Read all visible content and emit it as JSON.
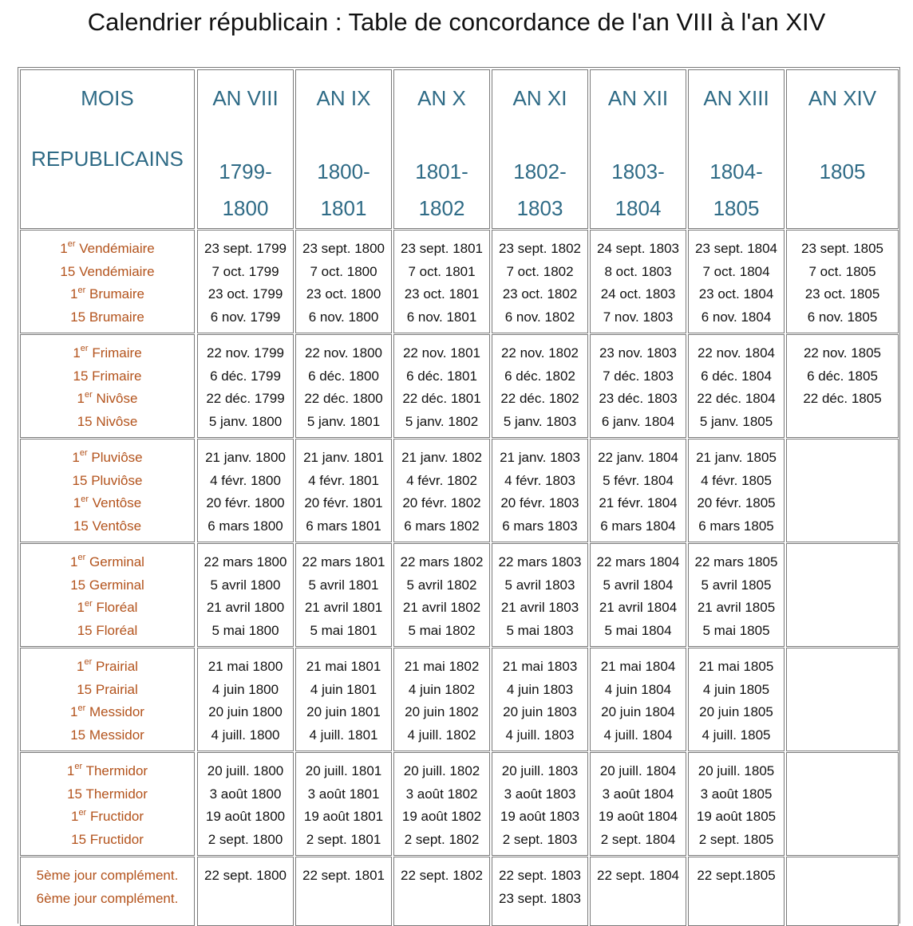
{
  "title": "Calendrier républicain : Table de concordance de l'an VIII à l'an XIV",
  "header": {
    "mois_line1": "MOIS",
    "mois_line2": "REPUBLICAINS",
    "years": [
      {
        "an": "AN VIII",
        "y1": "1799-",
        "y2": "1800"
      },
      {
        "an": "AN IX",
        "y1": "1800-",
        "y2": "1801"
      },
      {
        "an": "AN X",
        "y1": "1801-",
        "y2": "1802"
      },
      {
        "an": "AN XI",
        "y1": "1802-",
        "y2": "1803"
      },
      {
        "an": "AN XII",
        "y1": "1803-",
        "y2": "1804"
      },
      {
        "an": "AN XIII",
        "y1": "1804-",
        "y2": "1805"
      },
      {
        "an": "AN XIV",
        "y1": "1805",
        "y2": ""
      }
    ]
  },
  "groups": [
    {
      "mois": [
        {
          "pre": "1",
          "sup": "er",
          "name": "Vendémiaire"
        },
        {
          "pre": "15",
          "sup": "",
          "name": "Vendémiaire"
        },
        {
          "pre": "1",
          "sup": "er",
          "name": "Brumaire"
        },
        {
          "pre": "15",
          "sup": "",
          "name": "Brumaire"
        }
      ],
      "dates": [
        [
          "23 sept. 1799",
          "7 oct. 1799",
          "23 oct. 1799",
          "6 nov. 1799"
        ],
        [
          "23 sept. 1800",
          "7 oct. 1800",
          "23 oct. 1800",
          "6 nov. 1800"
        ],
        [
          "23 sept. 1801",
          "7 oct. 1801",
          "23 oct. 1801",
          "6 nov. 1801"
        ],
        [
          "23 sept. 1802",
          "7 oct. 1802",
          "23 oct. 1802",
          "6 nov. 1802"
        ],
        [
          "24 sept. 1803",
          "8 oct. 1803",
          "24 oct. 1803",
          "7 nov. 1803"
        ],
        [
          "23 sept. 1804",
          "7 oct. 1804",
          "23 oct. 1804",
          "6 nov. 1804"
        ],
        [
          "23 sept. 1805",
          "7 oct. 1805",
          "23 oct. 1805",
          "6 nov. 1805"
        ]
      ]
    },
    {
      "mois": [
        {
          "pre": "1",
          "sup": "er",
          "name": "Frimaire"
        },
        {
          "pre": "15",
          "sup": "",
          "name": "Frimaire"
        },
        {
          "pre": "1",
          "sup": "er",
          "name": "Nivôse"
        },
        {
          "pre": "15",
          "sup": "",
          "name": "Nivôse"
        }
      ],
      "dates": [
        [
          "22 nov. 1799",
          "6 déc. 1799",
          "22 déc. 1799",
          "5 janv. 1800"
        ],
        [
          "22 nov. 1800",
          "6 déc. 1800",
          "22 déc. 1800",
          "5 janv. 1801"
        ],
        [
          "22 nov. 1801",
          "6 déc. 1801",
          "22 déc. 1801",
          "5 janv. 1802"
        ],
        [
          "22 nov. 1802",
          "6 déc. 1802",
          "22 déc. 1802",
          "5 janv. 1803"
        ],
        [
          "23 nov. 1803",
          "7 déc. 1803",
          "23 déc. 1803",
          "6 janv. 1804"
        ],
        [
          "22 nov. 1804",
          "6 déc. 1804",
          "22 déc. 1804",
          "5 janv. 1805"
        ],
        [
          "22 nov. 1805",
          "6 déc. 1805",
          "22 déc. 1805"
        ]
      ]
    },
    {
      "mois": [
        {
          "pre": "1",
          "sup": "er",
          "name": "Pluviôse"
        },
        {
          "pre": "15",
          "sup": "",
          "name": "Pluviôse"
        },
        {
          "pre": "1",
          "sup": "er",
          "name": "Ventôse"
        },
        {
          "pre": "15",
          "sup": "",
          "name": "Ventôse"
        }
      ],
      "dates": [
        [
          "21 janv. 1800",
          "4 févr. 1800",
          "20 févr. 1800",
          "6 mars 1800"
        ],
        [
          "21 janv. 1801",
          "4 févr. 1801",
          "20 févr. 1801",
          "6 mars 1801"
        ],
        [
          "21 janv. 1802",
          "4 févr. 1802",
          "20 févr. 1802",
          "6 mars 1802"
        ],
        [
          "21 janv. 1803",
          "4 févr. 1803",
          "20 févr. 1803",
          "6 mars 1803"
        ],
        [
          "22 janv. 1804",
          "5 févr. 1804",
          "21 févr. 1804",
          "6 mars 1804"
        ],
        [
          "21 janv. 1805",
          "4 févr. 1805",
          "20 févr. 1805",
          "6 mars 1805"
        ],
        []
      ]
    },
    {
      "mois": [
        {
          "pre": "1",
          "sup": "er",
          "name": "Germinal"
        },
        {
          "pre": "15",
          "sup": "",
          "name": "Germinal"
        },
        {
          "pre": "1",
          "sup": "er",
          "name": "Floréal"
        },
        {
          "pre": "15",
          "sup": "",
          "name": "Floréal"
        }
      ],
      "dates": [
        [
          "22 mars 1800",
          "5 avril 1800",
          "21 avril 1800",
          "5 mai 1800"
        ],
        [
          "22 mars 1801",
          "5 avril 1801",
          "21 avril 1801",
          "5 mai 1801"
        ],
        [
          "22 mars 1802",
          "5 avril 1802",
          "21 avril 1802",
          "5 mai 1802"
        ],
        [
          "22 mars 1803",
          "5 avril 1803",
          "21 avril 1803",
          "5 mai 1803"
        ],
        [
          "22 mars 1804",
          "5 avril 1804",
          "21 avril 1804",
          "5 mai 1804"
        ],
        [
          "22 mars 1805",
          "5 avril 1805",
          "21 avril 1805",
          "5 mai 1805"
        ],
        []
      ]
    },
    {
      "mois": [
        {
          "pre": "1",
          "sup": "er",
          "name": "Prairial"
        },
        {
          "pre": "15",
          "sup": "",
          "name": "Prairial"
        },
        {
          "pre": "1",
          "sup": "er",
          "name": "Messidor"
        },
        {
          "pre": "15",
          "sup": "",
          "name": "Messidor"
        }
      ],
      "dates": [
        [
          "21 mai 1800",
          "4 juin 1800",
          "20 juin 1800",
          "4 juill. 1800"
        ],
        [
          "21 mai 1801",
          "4 juin 1801",
          "20 juin 1801",
          "4 juill. 1801"
        ],
        [
          "21 mai 1802",
          "4 juin 1802",
          "20 juin 1802",
          "4 juill. 1802"
        ],
        [
          "21 mai 1803",
          "4 juin 1803",
          "20 juin 1803",
          "4 juill. 1803"
        ],
        [
          "21 mai 1804",
          "4 juin 1804",
          "20 juin 1804",
          "4 juill. 1804"
        ],
        [
          "21 mai 1805",
          "4 juin 1805",
          "20 juin 1805",
          "4 juill. 1805"
        ],
        []
      ]
    },
    {
      "mois": [
        {
          "pre": "1",
          "sup": "er",
          "name": "Thermidor"
        },
        {
          "pre": "15",
          "sup": "",
          "name": "Thermidor"
        },
        {
          "pre": "1",
          "sup": "er",
          "name": "Fructidor"
        },
        {
          "pre": "15",
          "sup": "",
          "name": "Fructidor"
        }
      ],
      "dates": [
        [
          "20 juill. 1800",
          "3 août 1800",
          "19 août 1800",
          "2 sept. 1800"
        ],
        [
          "20 juill. 1801",
          "3 août 1801",
          "19 août 1801",
          "2 sept. 1801"
        ],
        [
          "20 juill. 1802",
          "3 août 1802",
          "19 août 1802",
          "2 sept. 1802"
        ],
        [
          "20 juill. 1803",
          "3 août 1803",
          "19 août 1803",
          "2 sept. 1803"
        ],
        [
          "20 juill. 1804",
          "3 août 1804",
          "19 août 1804",
          "2 sept. 1804"
        ],
        [
          "20 juill. 1805",
          "3 août 1805",
          "19 août 1805",
          "2 sept. 1805"
        ],
        []
      ]
    },
    {
      "mois": [
        {
          "pre": "5ème jour complément.",
          "sup": "",
          "name": ""
        },
        {
          "pre": "6ème jour complément.",
          "sup": "",
          "name": ""
        }
      ],
      "dates": [
        [
          "22 sept. 1800"
        ],
        [
          "22 sept. 1801"
        ],
        [
          "22 sept. 1802"
        ],
        [
          "22 sept. 1803",
          "23 sept. 1803"
        ],
        [
          "22 sept. 1804"
        ],
        [
          "22 sept.1805"
        ],
        []
      ]
    }
  ]
}
